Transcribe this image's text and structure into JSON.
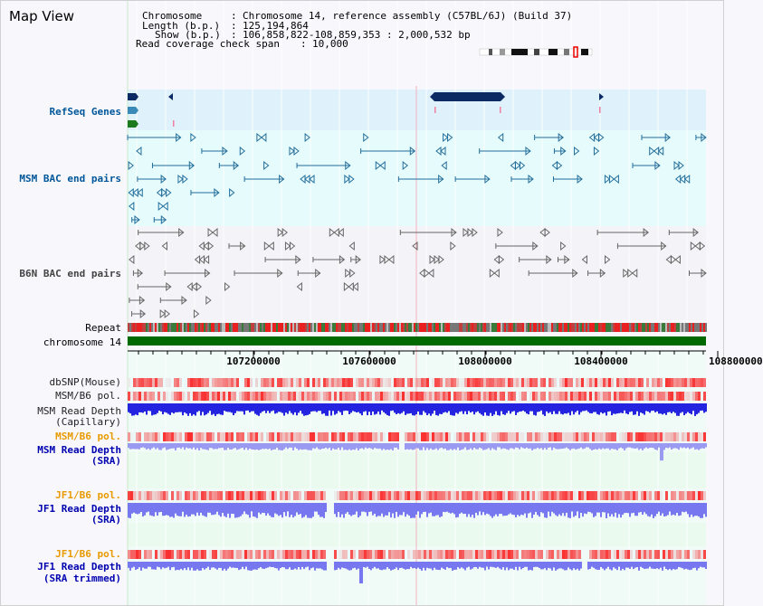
{
  "header": {
    "title": "Map View",
    "chromosome_label": "Chromosome",
    "chromosome_value": "Chromosome 14, reference assembly (C57BL/6J) (Build 37)",
    "length_label": "Length (b.p.)",
    "length_value": "125,194,864",
    "show_label": "Show (b.p.)",
    "show_value": "106,858,822-108,859,353 : 2,000,532 bp",
    "coverage_label": "Read coverage check span",
    "coverage_value": "10,000"
  },
  "tracks": {
    "refseq": "RefSeq Genes",
    "msm_bac": "MSM BAC end pairs",
    "b6n_bac": "B6N BAC end pairs",
    "repeat": "Repeat",
    "chromosome": "chromosome 14",
    "dbsnp": "dbSNP(Mouse)",
    "msm_b6_pol_1": "MSM/B6 pol.",
    "msm_read_depth_cap_1": "MSM Read Depth",
    "msm_read_depth_cap_2": "(Capillary)",
    "msm_b6_pol_2": "MSM/B6 pol.",
    "msm_read_depth_sra_1": "MSM Read Depth",
    "msm_read_depth_sra_2": "(SRA)",
    "jf1_b6_pol_1": "JF1/B6 pol.",
    "jf1_read_depth_sra_1": "JF1 Read Depth",
    "jf1_read_depth_sra_2": "(SRA)",
    "jf1_b6_pol_2": "JF1/B6 pol.",
    "jf1_read_depth_trim_1": "JF1 Read Depth",
    "jf1_read_depth_trim_2": "(SRA trimmed)"
  },
  "ruler": {
    "ticks": [
      "107200000",
      "107600000",
      "108000000",
      "108400000",
      "108800000"
    ]
  },
  "colors": {
    "refseq_bg": "#dff2fb",
    "msm_bg": "#e6fbfb",
    "b6n_bg": "#f4f4f8",
    "gene_dark": "#0b2a63",
    "gene_teal": "#3a8ab8",
    "gene_green": "#1b7a1b",
    "msm_feature": "#236e9c",
    "b6n_feature": "#666666",
    "chromosome_bar": "#006a00",
    "snp_red": "#e8373a",
    "depth_dark": "#2424e0",
    "depth_light": "#7777f0",
    "orange_label": "#e89a00"
  }
}
